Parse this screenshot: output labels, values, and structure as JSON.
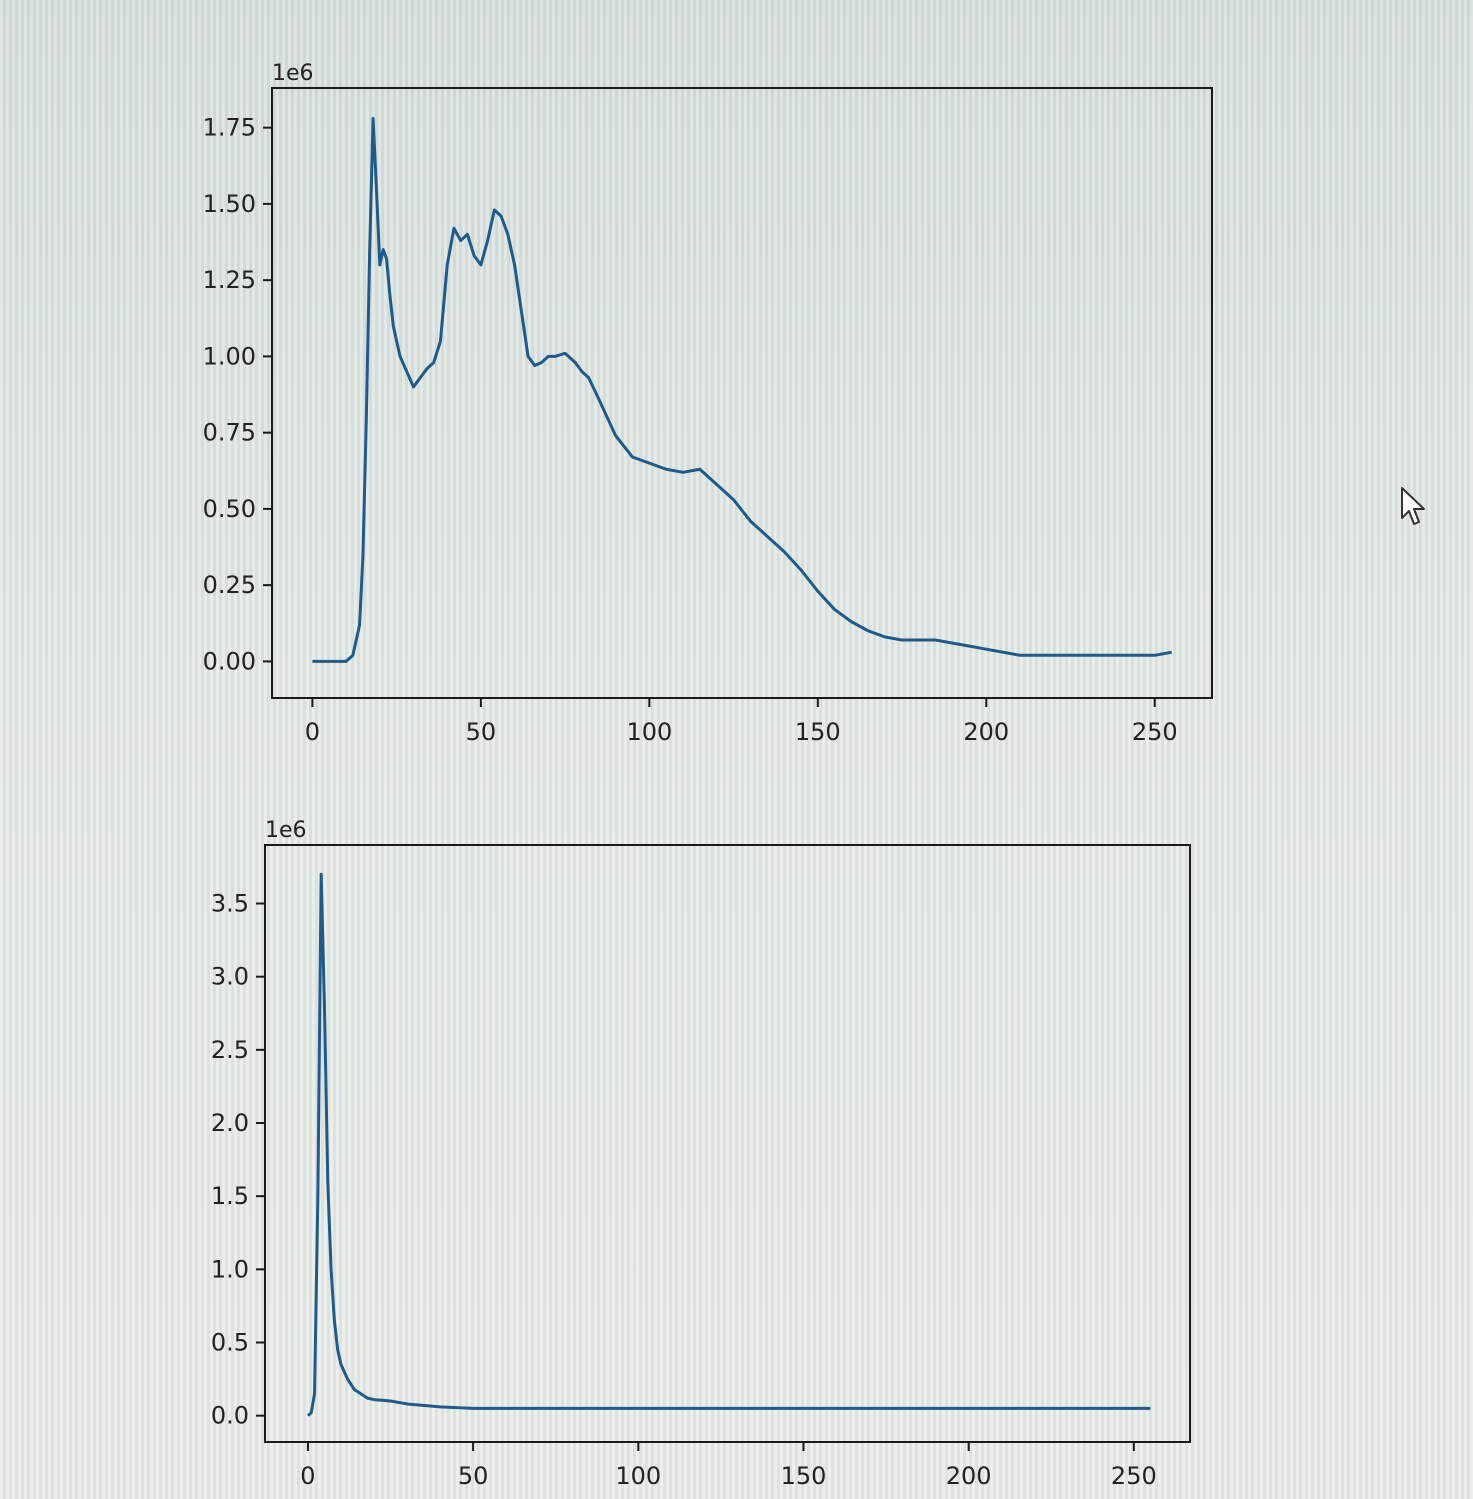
{
  "chart_data": [
    {
      "type": "line",
      "title": "",
      "xlabel": "",
      "ylabel": "",
      "offset_label": "1e6",
      "xlim": [
        -12,
        267
      ],
      "ylim": [
        -0.12,
        1.88
      ],
      "xticks": [
        0,
        50,
        100,
        150,
        200,
        250
      ],
      "xtick_labels": [
        "0",
        "50",
        "100",
        "150",
        "200",
        "250"
      ],
      "yticks": [
        0.0,
        0.25,
        0.5,
        0.75,
        1.0,
        1.25,
        1.5,
        1.75
      ],
      "ytick_labels": [
        "0.00",
        "0.25",
        "0.50",
        "0.75",
        "1.00",
        "1.25",
        "1.50",
        "1.75"
      ],
      "grid": false,
      "line_color": "#1f5a8a",
      "series": [
        {
          "x": [
            0,
            5,
            10,
            12,
            14,
            15,
            16,
            17,
            18,
            19,
            20,
            21,
            22,
            23,
            24,
            26,
            28,
            30,
            32,
            34,
            36,
            38,
            40,
            42,
            44,
            46,
            48,
            50,
            52,
            54,
            56,
            58,
            60,
            62,
            64,
            66,
            68,
            70,
            72,
            75,
            78,
            80,
            82,
            85,
            90,
            95,
            100,
            105,
            110,
            115,
            120,
            125,
            130,
            135,
            140,
            145,
            150,
            155,
            160,
            165,
            170,
            175,
            180,
            185,
            190,
            195,
            200,
            205,
            210,
            215,
            220,
            225,
            230,
            235,
            240,
            245,
            250,
            255
          ],
          "y": [
            0.0,
            0.0,
            0.0,
            0.02,
            0.12,
            0.35,
            0.8,
            1.35,
            1.78,
            1.55,
            1.3,
            1.35,
            1.32,
            1.2,
            1.1,
            1.0,
            0.95,
            0.9,
            0.93,
            0.96,
            0.98,
            1.05,
            1.3,
            1.42,
            1.38,
            1.4,
            1.33,
            1.3,
            1.38,
            1.48,
            1.46,
            1.4,
            1.3,
            1.15,
            1.0,
            0.97,
            0.98,
            1.0,
            1.0,
            1.01,
            0.98,
            0.95,
            0.93,
            0.86,
            0.74,
            0.67,
            0.65,
            0.63,
            0.62,
            0.63,
            0.58,
            0.53,
            0.46,
            0.41,
            0.36,
            0.3,
            0.23,
            0.17,
            0.13,
            0.1,
            0.08,
            0.07,
            0.07,
            0.07,
            0.06,
            0.05,
            0.04,
            0.03,
            0.02,
            0.02,
            0.02,
            0.02,
            0.02,
            0.02,
            0.02,
            0.02,
            0.02,
            0.03
          ]
        }
      ]
    },
    {
      "type": "line",
      "title": "",
      "xlabel": "",
      "ylabel": "",
      "offset_label": "1e6",
      "xlim": [
        -13,
        267
      ],
      "ylim": [
        -0.18,
        3.9
      ],
      "xticks": [
        0,
        50,
        100,
        150,
        200,
        250
      ],
      "xtick_labels": [
        "0",
        "50",
        "100",
        "150",
        "200",
        "250"
      ],
      "yticks": [
        0.0,
        0.5,
        1.0,
        1.5,
        2.0,
        2.5,
        3.0,
        3.5
      ],
      "ytick_labels": [
        "0.0",
        "0.5",
        "1.0",
        "1.5",
        "2.0",
        "2.5",
        "3.0",
        "3.5"
      ],
      "grid": false,
      "line_color": "#1f5a8a",
      "series": [
        {
          "x": [
            0,
            1,
            2,
            3,
            4,
            5,
            6,
            7,
            8,
            9,
            10,
            12,
            14,
            16,
            18,
            20,
            25,
            30,
            40,
            50,
            60,
            80,
            100,
            150,
            200,
            250,
            255
          ],
          "y": [
            0.0,
            0.02,
            0.15,
            1.5,
            3.7,
            2.8,
            1.6,
            1.0,
            0.65,
            0.45,
            0.35,
            0.25,
            0.18,
            0.15,
            0.12,
            0.11,
            0.1,
            0.08,
            0.06,
            0.05,
            0.05,
            0.05,
            0.05,
            0.05,
            0.05,
            0.05,
            0.05
          ]
        }
      ]
    }
  ],
  "colors": {
    "line": "#1f5a8a",
    "axes": "#1a1a1a",
    "text": "#222222"
  },
  "cursor": {
    "icon": "arrow-pointer-icon"
  }
}
